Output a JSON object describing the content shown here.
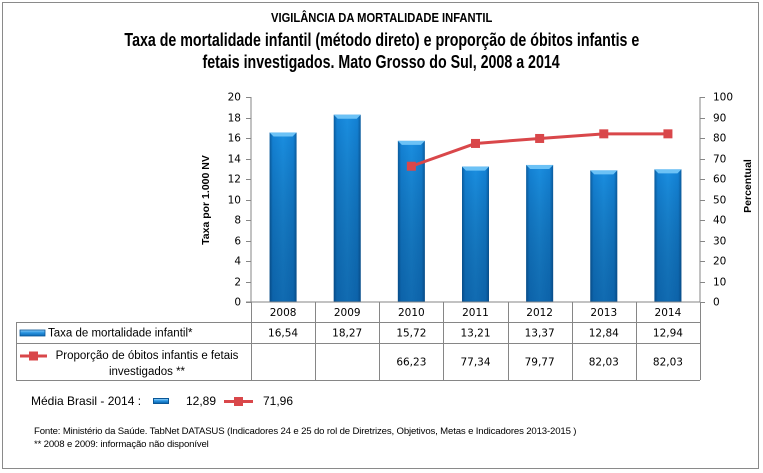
{
  "header": {
    "kicker": "VIGILÂNCIA DA MORTALIDADE INFANTIL",
    "title_line1": "Taxa de mortalidade infantil (método direto) e proporção de óbitos infantis e",
    "title_line2": "fetais investigados. Mato Grosso do Sul, 2008 a 2014"
  },
  "chart_data": {
    "type": "bar",
    "title": "Taxa de mortalidade infantil (método direto) e proporção de óbitos infantis e fetais investigados. Mato Grosso do Sul, 2008 a 2014",
    "categories": [
      "2008",
      "2009",
      "2010",
      "2011",
      "2012",
      "2013",
      "2014"
    ],
    "series": [
      {
        "name": "Taxa de mortalidade infantil*",
        "label_lines": [
          "Taxa de mortalidade infantil*"
        ],
        "type": "bar",
        "axis": "left",
        "values": [
          16.54,
          18.27,
          15.72,
          13.21,
          13.37,
          12.84,
          12.94
        ],
        "display_values": [
          "16,54",
          "18,27",
          "15,72",
          "13,21",
          "13,37",
          "12,84",
          "12,94"
        ],
        "color": "#1484d8"
      },
      {
        "name": "Proporção de óbitos infantis e fetais investigados **",
        "label_lines": [
          "Proporção de óbitos infantis e fetais",
          "investigados **"
        ],
        "type": "line",
        "axis": "right",
        "values": [
          null,
          null,
          66.23,
          77.34,
          79.77,
          82.03,
          82.03
        ],
        "display_values": [
          "",
          "",
          "66,23",
          "77,34",
          "79,77",
          "82,03",
          "82,03"
        ],
        "color": "#d9474a"
      }
    ],
    "xlabel": "",
    "ylabel": "Taxa  por 1.000 NV",
    "ylim": [
      0,
      20
    ],
    "yticks": [
      0,
      2,
      4,
      6,
      8,
      10,
      12,
      14,
      16,
      18,
      20
    ],
    "y2label": "Percentual",
    "y2lim": [
      0,
      100
    ],
    "y2ticks": [
      0,
      10,
      20,
      30,
      40,
      50,
      60,
      70,
      80,
      90,
      100
    ],
    "grid": false,
    "legend": "data-table-left",
    "data_table": true
  },
  "brazil_average": {
    "label": "Média Brasil - 2014 :",
    "bar_value": "12,89",
    "line_value": "71,96"
  },
  "footer": {
    "source": "Fonte: Ministério da Saúde. TabNet DATASUS (Indicadores  24 e 25 do rol de Diretrizes, Objetivos, Metas e Indicadores 2013-2015 )",
    "note": "** 2008 e 2009: informação não disponível"
  }
}
